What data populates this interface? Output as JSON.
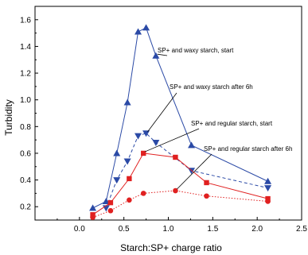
{
  "chart_data": {
    "type": "line",
    "xlabel": "Starch:SP+ charge ratio",
    "ylabel": "Turbidity",
    "xlim": [
      -0.5,
      2.5
    ],
    "ylim": [
      0.1,
      1.7
    ],
    "xticks": [
      "0.0",
      "0.5",
      "1.0",
      "1.5",
      "2.0",
      "2.5"
    ],
    "yticks": [
      "0.2",
      "0.4",
      "0.6",
      "0.8",
      "1.0",
      "1.2",
      "1.4",
      "1.6"
    ],
    "grid": false,
    "legend": "none",
    "series": [
      {
        "name": "SP+ and waxy starch, start",
        "color": "#2b4aa6",
        "line_style": "solid",
        "marker": "triangle-up",
        "x": [
          0.15,
          0.3,
          0.42,
          0.54,
          0.66,
          0.75,
          0.86,
          1.26,
          2.12
        ],
        "y": [
          0.19,
          0.24,
          0.6,
          0.98,
          1.51,
          1.54,
          1.33,
          0.66,
          0.39
        ]
      },
      {
        "name": "SP+ and waxy starch after 6h",
        "color": "#2b4aa6",
        "line_style": "dashed",
        "marker": "triangle-down",
        "x": [
          0.3,
          0.42,
          0.54,
          0.66,
          0.75,
          0.86,
          1.26,
          2.12
        ],
        "y": [
          0.19,
          0.4,
          0.54,
          0.73,
          0.75,
          0.68,
          0.47,
          0.34
        ]
      },
      {
        "name": "SP+ and regular starch, start",
        "color": "#e02020",
        "line_style": "solid",
        "marker": "square",
        "x": [
          0.15,
          0.35,
          0.56,
          0.72,
          1.08,
          1.43,
          2.12
        ],
        "y": [
          0.14,
          0.23,
          0.41,
          0.6,
          0.57,
          0.38,
          0.26
        ]
      },
      {
        "name": "SP+ and regular starch after 6h",
        "color": "#e02020",
        "line_style": "dotted",
        "marker": "circle",
        "x": [
          0.15,
          0.35,
          0.56,
          0.72,
          1.08,
          1.43,
          2.12
        ],
        "y": [
          0.12,
          0.17,
          0.25,
          0.3,
          0.32,
          0.28,
          0.24
        ]
      }
    ],
    "annotations": [
      {
        "text": "SP+ and waxy starch, start",
        "series_index": 0,
        "point_index": 6
      },
      {
        "text": "SP+ and waxy starch after 6h",
        "series_index": 1,
        "point_index": 4
      },
      {
        "text": "SP+ and regular starch, start",
        "series_index": 2,
        "point_index": 3
      },
      {
        "text": "SP+ and regular starch after 6h",
        "series_index": 3,
        "point_index": 4
      }
    ]
  }
}
